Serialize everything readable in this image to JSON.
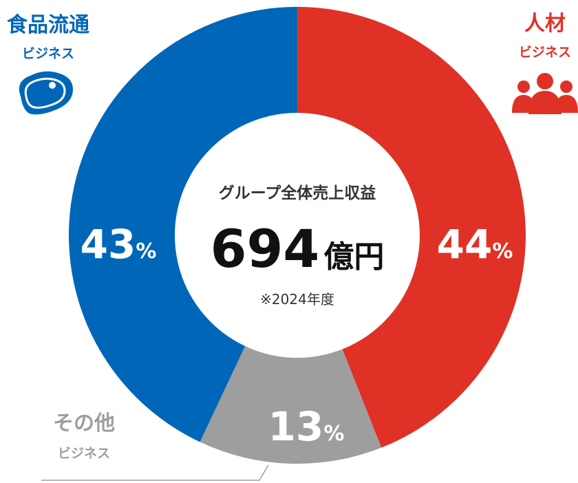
{
  "chart_data": {
    "type": "pie",
    "variant": "donut",
    "center": {
      "title": "グループ全体売上収益",
      "value": "694",
      "unit": "億円",
      "note": "※2024年度"
    },
    "segments": [
      {
        "name": "人材",
        "sub": "ビジネス",
        "value": 44,
        "color": "#e03127",
        "icon": "people-icon"
      },
      {
        "name": "その他",
        "sub": "ビジネス",
        "value": 13,
        "color": "#9e9e9e",
        "icon": ""
      },
      {
        "name": "食品流通",
        "sub": "ビジネス",
        "value": 43,
        "color": "#0066b8",
        "icon": "meat-icon"
      }
    ],
    "percent_suffix": "%",
    "legend_placement": "around"
  }
}
